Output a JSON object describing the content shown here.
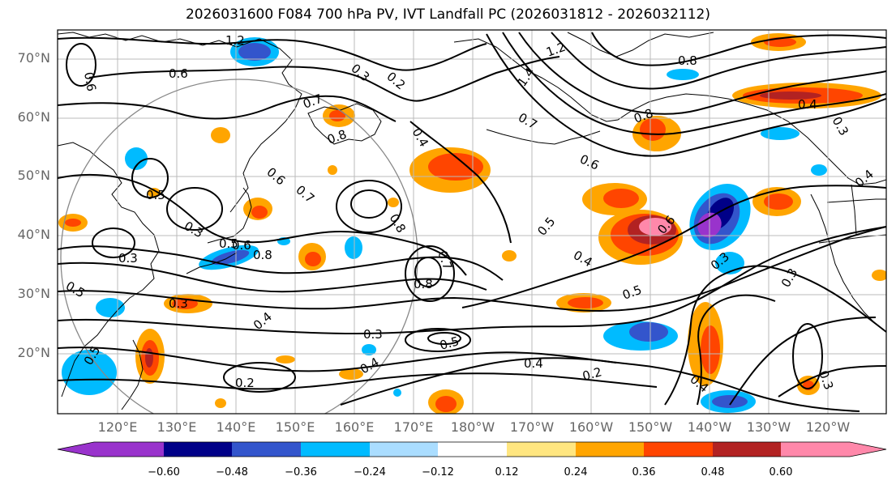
{
  "title": "2026031600 F084 700 hPa PV, IVT Landfall PC (2026031812 - 2026032112)",
  "lat_labels": [
    "70°N",
    "60°N",
    "50°N",
    "40°N",
    "30°N",
    "20°N"
  ],
  "lon_labels": [
    "120°E",
    "130°E",
    "140°E",
    "150°E",
    "160°E",
    "170°E",
    "180°W",
    "170°W",
    "160°W",
    "150°W",
    "140°W",
    "130°W",
    "120°W"
  ],
  "colorbar": {
    "ticks": [
      "−0.60",
      "−0.48",
      "−0.36",
      "−0.24",
      "−0.12",
      "0.12",
      "0.24",
      "0.36",
      "0.48",
      "0.60"
    ],
    "colors": [
      "#9933cc",
      "#000088",
      "#3355cc",
      "#00bbff",
      "#aaddff",
      "#ffffff",
      "#ffe680",
      "#ffa500",
      "#ff4500",
      "#b22222",
      "#ff88aa"
    ]
  },
  "contour_labels": [
    {
      "text": "1.2"
    },
    {
      "text": "0.6"
    },
    {
      "text": "0.6"
    },
    {
      "text": "0.3"
    },
    {
      "text": "0.2"
    },
    {
      "text": "1.4"
    },
    {
      "text": "1.2"
    },
    {
      "text": "0.8"
    },
    {
      "text": "0.7"
    },
    {
      "text": "0.8"
    },
    {
      "text": "0.4"
    },
    {
      "text": "0.7"
    },
    {
      "text": "0.6"
    },
    {
      "text": "0.8"
    },
    {
      "text": "0.4"
    },
    {
      "text": "0.3"
    },
    {
      "text": "0.6"
    },
    {
      "text": "0.5"
    },
    {
      "text": "0.7"
    },
    {
      "text": "0.5"
    },
    {
      "text": "0.3"
    },
    {
      "text": "0.6"
    },
    {
      "text": "0.8"
    },
    {
      "text": "0.5"
    },
    {
      "text": "0.8"
    },
    {
      "text": "0.4"
    },
    {
      "text": "0.7"
    },
    {
      "text": "0.6"
    },
    {
      "text": "0.3"
    },
    {
      "text": "0.5"
    },
    {
      "text": "0.3"
    },
    {
      "text": "0.8"
    },
    {
      "text": "0.4"
    },
    {
      "text": "0.5"
    },
    {
      "text": "0.3"
    },
    {
      "text": "0.5"
    },
    {
      "text": "0.4"
    },
    {
      "text": "0.3"
    },
    {
      "text": "0.2"
    },
    {
      "text": "0.4"
    },
    {
      "text": "0.4"
    },
    {
      "text": "0.3"
    },
    {
      "text": "0.2"
    },
    {
      "text": "0.3"
    },
    {
      "text": "0.5"
    },
    {
      "text": "0.4"
    }
  ]
}
